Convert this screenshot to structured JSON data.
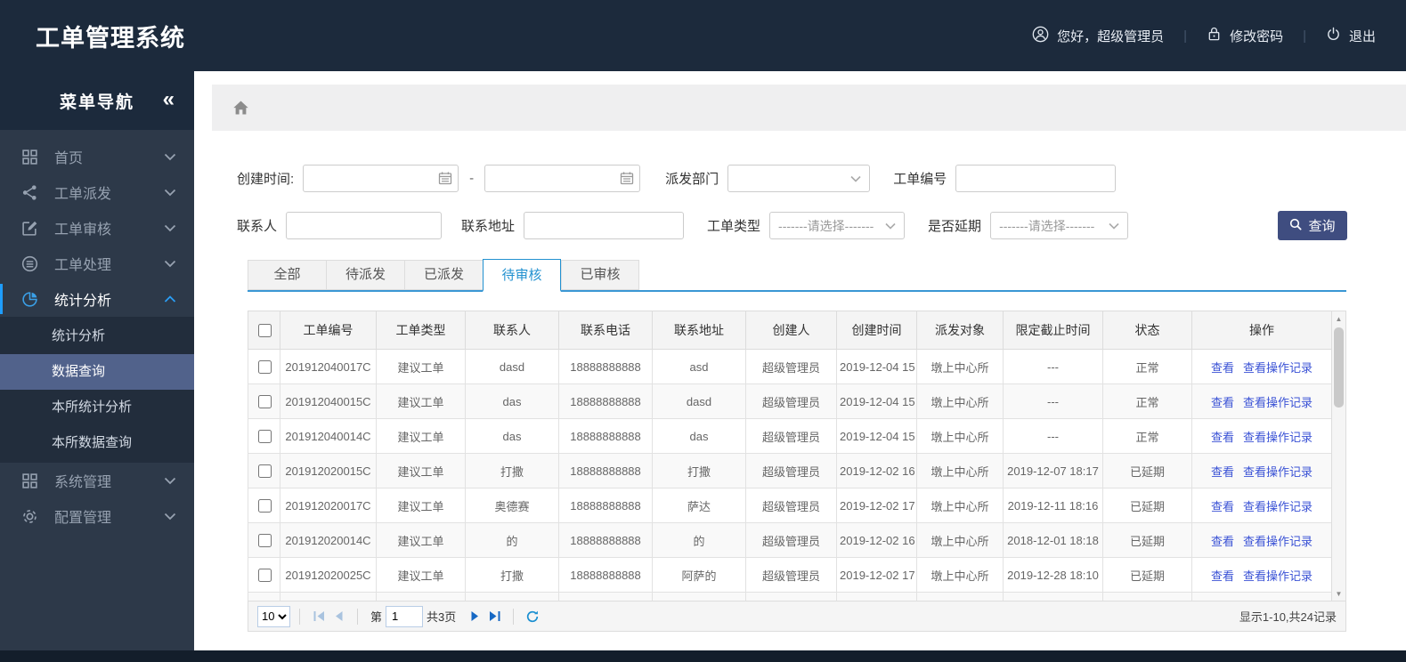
{
  "app": {
    "title": "工单管理系统"
  },
  "topbar": {
    "greeting": "您好，超级管理员",
    "change_password": "修改密码",
    "logout": "退出",
    "separator": "|"
  },
  "sidebar": {
    "title": "菜单导航",
    "collapse_glyph": "«",
    "items": [
      {
        "label": "首页",
        "icon": "grid-icon",
        "expanded": false,
        "active": false
      },
      {
        "label": "工单派发",
        "icon": "share-icon",
        "expanded": false,
        "active": false
      },
      {
        "label": "工单审核",
        "icon": "edit-icon",
        "expanded": false,
        "active": false
      },
      {
        "label": "工单处理",
        "icon": "process-icon",
        "expanded": false,
        "active": false
      },
      {
        "label": "统计分析",
        "icon": "pie-icon",
        "expanded": true,
        "active": true,
        "children": [
          {
            "label": "统计分析",
            "selected": false
          },
          {
            "label": "数据查询",
            "selected": true
          },
          {
            "label": "本所统计分析",
            "selected": false
          },
          {
            "label": "本所数据查询",
            "selected": false
          }
        ]
      },
      {
        "label": "系统管理",
        "icon": "modules-icon",
        "expanded": false,
        "active": false
      },
      {
        "label": "配置管理",
        "icon": "gear-icon",
        "expanded": false,
        "active": false
      }
    ]
  },
  "filters": {
    "created_label": "创建时间:",
    "range_dash": "-",
    "dept_label": "派发部门",
    "order_no_label": "工单编号",
    "contact_label": "联系人",
    "address_label": "联系地址",
    "type_label": "工单类型",
    "delay_label": "是否延期",
    "select_placeholder": "-------请选择-------",
    "query_button": "查询"
  },
  "tabs": {
    "items": [
      "全部",
      "待派发",
      "已派发",
      "待审核",
      "已审核"
    ],
    "active_index": 3
  },
  "table": {
    "columns": [
      "工单编号",
      "工单类型",
      "联系人",
      "联系电话",
      "联系地址",
      "创建人",
      "创建时间",
      "派发对象",
      "限定截止时间",
      "状态",
      "操作"
    ],
    "actions": [
      "查看",
      "查看操作记录"
    ],
    "rows": [
      {
        "order_no": "201912040017C",
        "order_type": "建议工单",
        "contact": "dasd",
        "phone": "18888888888",
        "address": "asd",
        "creator": "超级管理员",
        "created_at": "2019-12-04 15",
        "dispatch_target": "墩上中心所",
        "deadline": "---",
        "status": "正常",
        "delayed": false
      },
      {
        "order_no": "201912040015C",
        "order_type": "建议工单",
        "contact": "das",
        "phone": "18888888888",
        "address": "dasd",
        "creator": "超级管理员",
        "created_at": "2019-12-04 15",
        "dispatch_target": "墩上中心所",
        "deadline": "---",
        "status": "正常",
        "delayed": false
      },
      {
        "order_no": "201912040014C",
        "order_type": "建议工单",
        "contact": "das",
        "phone": "18888888888",
        "address": "das",
        "creator": "超级管理员",
        "created_at": "2019-12-04 15",
        "dispatch_target": "墩上中心所",
        "deadline": "---",
        "status": "正常",
        "delayed": false
      },
      {
        "order_no": "201912020015C",
        "order_type": "建议工单",
        "contact": "打撒",
        "phone": "18888888888",
        "address": "打撒",
        "creator": "超级管理员",
        "created_at": "2019-12-02 16",
        "dispatch_target": "墩上中心所",
        "deadline": "2019-12-07 18:17",
        "status": "已延期",
        "delayed": true
      },
      {
        "order_no": "201912020017C",
        "order_type": "建议工单",
        "contact": "奥德赛",
        "phone": "18888888888",
        "address": "萨达",
        "creator": "超级管理员",
        "created_at": "2019-12-02 17",
        "dispatch_target": "墩上中心所",
        "deadline": "2019-12-11 18:16",
        "status": "已延期",
        "delayed": true
      },
      {
        "order_no": "201912020014C",
        "order_type": "建议工单",
        "contact": "的",
        "phone": "18888888888",
        "address": "的",
        "creator": "超级管理员",
        "created_at": "2019-12-02 16",
        "dispatch_target": "墩上中心所",
        "deadline": "2018-12-01 18:18",
        "status": "已延期",
        "delayed": true
      },
      {
        "order_no": "201912020025C",
        "order_type": "建议工单",
        "contact": "打撒",
        "phone": "18888888888",
        "address": "阿萨的",
        "creator": "超级管理员",
        "created_at": "2019-12-02 17",
        "dispatch_target": "墩上中心所",
        "deadline": "2019-12-28 18:10",
        "status": "已延期",
        "delayed": true
      }
    ]
  },
  "pagination": {
    "page_size": "10",
    "page_prefix": "第",
    "current_page": "1",
    "total_pages": "共3页",
    "summary": "显示1-10,共24记录"
  },
  "colors": {
    "header_bg": "#1c2a3c",
    "sidebar_bg": "#2d3949",
    "submenu_selected_bg": "#51628b",
    "accent_blue": "#1e9dff",
    "tab_blue": "#2291d0",
    "link_blue": "#3a52d5",
    "status_red": "#e03434",
    "query_button_bg": "#3f4d80"
  }
}
